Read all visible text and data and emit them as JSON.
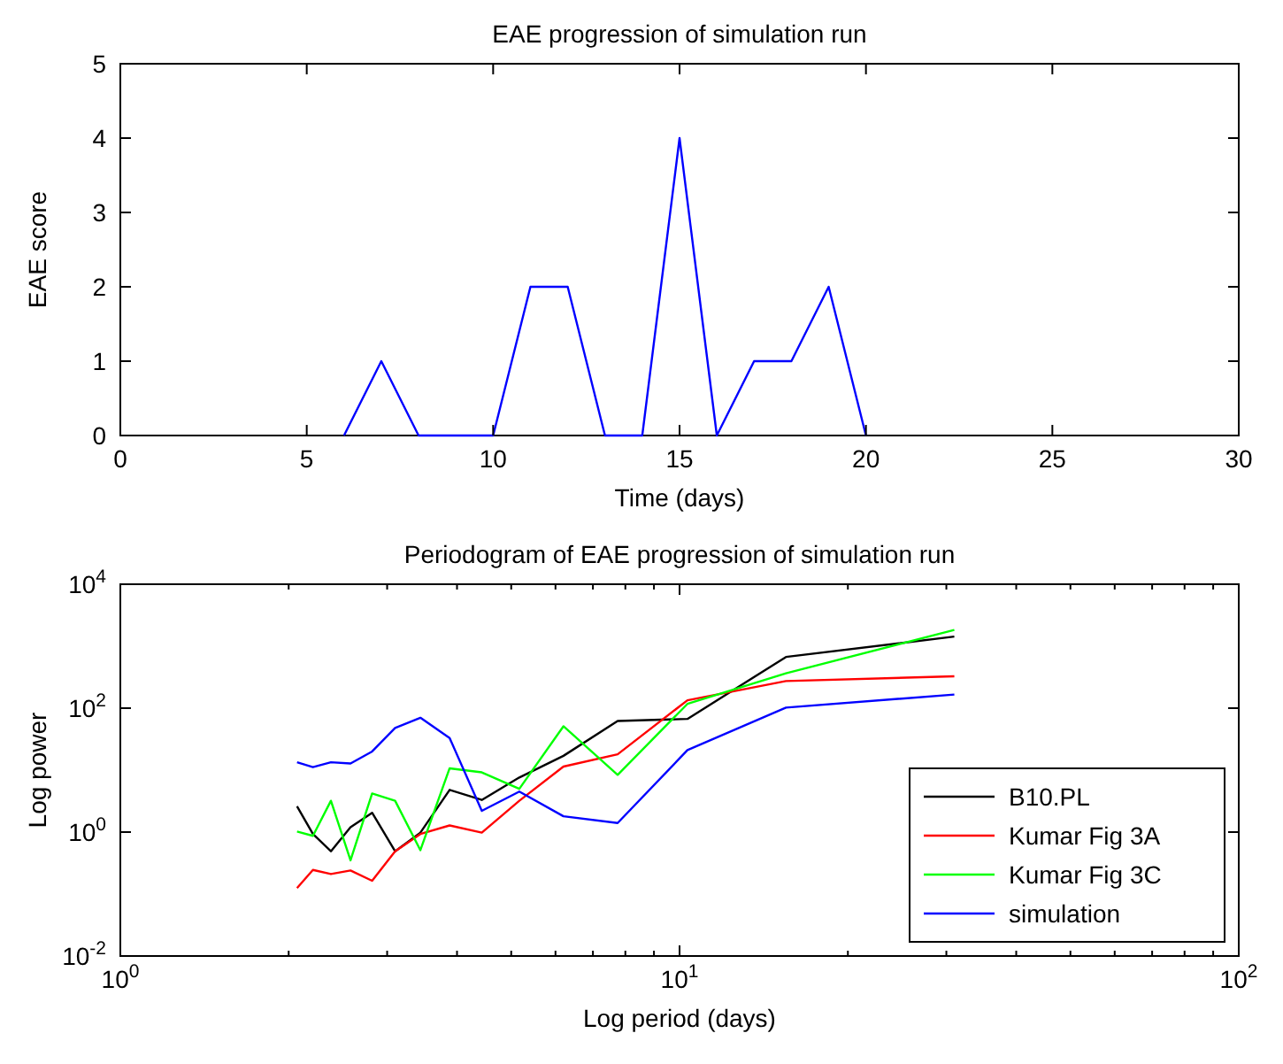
{
  "chart_data": [
    {
      "type": "line",
      "title": "EAE progression of simulation run",
      "xlabel": "Time (days)",
      "ylabel": "EAE score",
      "x": [
        6,
        7,
        8,
        9,
        10,
        11,
        12,
        13,
        14,
        15,
        16,
        17,
        18,
        19,
        20
      ],
      "series": [
        {
          "color": "#0000ff",
          "values": [
            0,
            1,
            0,
            0,
            0,
            2,
            2,
            0,
            0,
            4,
            0,
            1,
            1,
            2,
            0
          ]
        }
      ],
      "xlim": [
        0,
        30
      ],
      "xticks": [
        0,
        5,
        10,
        15,
        20,
        25,
        30
      ],
      "ylim": [
        0,
        5
      ],
      "yticks": [
        0,
        1,
        2,
        3,
        4,
        5
      ],
      "grid": false,
      "legend": false
    },
    {
      "type": "line",
      "title": "Periodogram of EAE progression of simulation run",
      "xlabel": "Log period (days)",
      "ylabel": "Log power",
      "log": "xy",
      "legend": "bottom right",
      "grid": false,
      "x": [
        2.07,
        2.21,
        2.38,
        2.58,
        2.82,
        3.1,
        3.44,
        3.88,
        4.43,
        5.17,
        6.2,
        7.75,
        10.33,
        15.5,
        31
      ],
      "series": [
        {
          "name": "B10.PL",
          "color": "#000000",
          "values": [
            2.6,
            0.93,
            0.49,
            1.2,
            2.05,
            0.49,
            0.98,
            4.8,
            3.3,
            7.6,
            17,
            62,
            67,
            670,
            1430
          ]
        },
        {
          "name": "Kumar Fig 3A",
          "color": "#ff0000",
          "values": [
            0.125,
            0.245,
            0.21,
            0.24,
            0.164,
            0.49,
            0.93,
            1.28,
            0.98,
            3.2,
            11.4,
            18,
            134,
            274,
            327
          ]
        },
        {
          "name": "Kumar Fig 3C",
          "color": "#00ff00",
          "values": [
            1.02,
            0.87,
            3.2,
            0.35,
            4.2,
            3.2,
            0.51,
            10.7,
            9.2,
            5,
            51,
            8.4,
            117,
            365,
            1830
          ]
        },
        {
          "name": "simulation",
          "color": "#0000ff",
          "values": [
            13.4,
            11.2,
            13.4,
            12.8,
            20,
            48,
            70,
            33,
            2.2,
            4.5,
            1.8,
            1.4,
            21,
            102,
            166
          ]
        }
      ],
      "xlim": [
        1,
        100
      ],
      "xticks": [
        {
          "value": 1,
          "label": "10$^{0}$"
        },
        {
          "value": 2,
          "label": null
        },
        {
          "value": 3,
          "label": null
        },
        {
          "value": 4,
          "label": null
        },
        {
          "value": 5,
          "label": null
        },
        {
          "value": 6,
          "label": null
        },
        {
          "value": 7,
          "label": null
        },
        {
          "value": 8,
          "label": null
        },
        {
          "value": 9,
          "label": null
        },
        {
          "value": 10,
          "label": "10$^{1}$"
        },
        {
          "value": 20,
          "label": null
        },
        {
          "value": 30,
          "label": null
        },
        {
          "value": 40,
          "label": null
        },
        {
          "value": 50,
          "label": null
        },
        {
          "value": 60,
          "label": null
        },
        {
          "value": 70,
          "label": null
        },
        {
          "value": 80,
          "label": null
        },
        {
          "value": 90,
          "label": null
        },
        {
          "value": 100,
          "label": "10$^{2}$"
        }
      ],
      "ylim": [
        0.01,
        10000
      ],
      "yticks": [
        {
          "value": 0.01,
          "label": "10$^{-2}$"
        },
        {
          "value": 1,
          "label": "10$^{0}$"
        },
        {
          "value": 100,
          "label": "10$^{2}$"
        },
        {
          "value": 10000,
          "label": "10$^{4}$"
        }
      ]
    }
  ]
}
